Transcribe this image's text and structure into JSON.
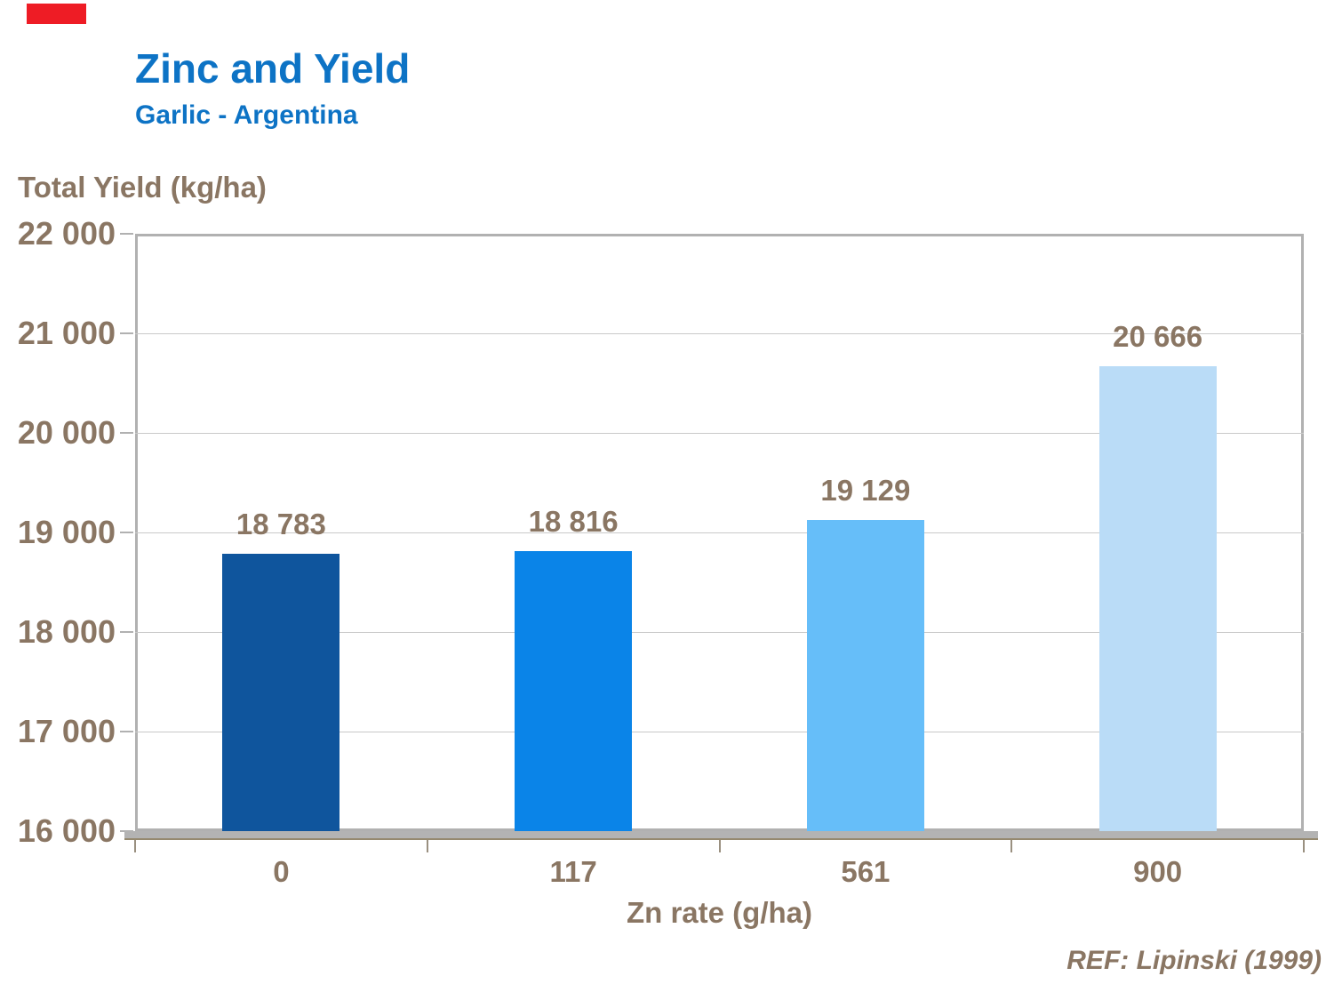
{
  "badge": {
    "color": "#ee1c25"
  },
  "header": {
    "title": "Zinc and Yield",
    "subtitle": "Garlic - Argentina",
    "title_color": "#0d73c5"
  },
  "chart_data": {
    "type": "bar",
    "title": "Zinc and Yield",
    "subtitle": "Garlic - Argentina",
    "xlabel": "Zn rate (g/ha)",
    "ylabel": "Total Yield (kg/ha)",
    "categories": [
      "0",
      "117",
      "561",
      "900"
    ],
    "values": [
      18783,
      18816,
      19129,
      20666
    ],
    "value_labels": [
      "18 783",
      "18 816",
      "19 129",
      "20 666"
    ],
    "bar_colors": [
      "#0f559d",
      "#0a84e8",
      "#66bef9",
      "#badcf7"
    ],
    "ylim": [
      16000,
      22000
    ],
    "ytick_step": 1000,
    "ytick_labels": [
      "16 000",
      "17 000",
      "18 000",
      "19 000",
      "20 000",
      "21 000",
      "22 000"
    ],
    "grid": true,
    "legend": false,
    "text_color": "#8a7663",
    "gridline_color": "#c9c9c9"
  },
  "footer": {
    "ref": "REF: Lipinski (1999)"
  }
}
